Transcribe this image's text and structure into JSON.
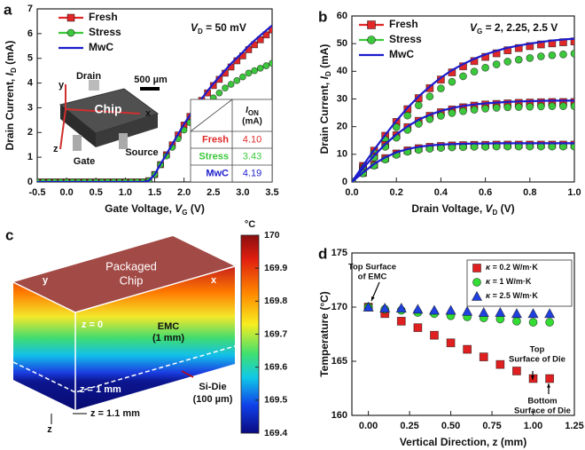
{
  "chart_data": [
    {
      "type": "line",
      "panel_label": "a",
      "x_label": {
        "pre": "Gate Voltage, ",
        "var": "V",
        "sub": "G",
        "post": " (V)"
      },
      "y_label": {
        "pre": "Drain Current, ",
        "var": "I",
        "sub": "D",
        "post": " (mA)"
      },
      "xlim": [
        -0.5,
        3.5
      ],
      "ylim": [
        0,
        7
      ],
      "xticks": [
        -0.5,
        {
          "value": 0,
          "label": "0.0"
        },
        0.5,
        {
          "value": 1,
          "label": "1.0"
        },
        1.5,
        {
          "value": 2,
          "label": "2.0"
        },
        2.5,
        {
          "value": 3,
          "label": "3.0"
        },
        3.5
      ],
      "yticks": [
        0,
        1,
        2,
        3,
        4,
        5,
        6,
        7
      ],
      "legend": "upper left",
      "annotations": [
        {
          "var": "V",
          "sub": "D",
          "post": " = 50 mV"
        }
      ],
      "x": [
        -0.5,
        -0.4,
        -0.3,
        -0.2,
        -0.1,
        0,
        0.1,
        0.2,
        0.3,
        0.4,
        0.5,
        0.6,
        0.7,
        0.8,
        0.9,
        1.0,
        1.1,
        1.2,
        1.3,
        1.4,
        1.5,
        1.6,
        1.7,
        1.8,
        1.9,
        2.0,
        2.1,
        2.2,
        2.3,
        2.4,
        2.5,
        2.6,
        2.7,
        2.8,
        2.9,
        3.0,
        3.1,
        3.2,
        3.3,
        3.4,
        3.5
      ],
      "series": [
        {
          "name": "Fresh",
          "color": "#e02828",
          "marker": "square",
          "values": [
            0,
            0,
            0,
            0,
            0,
            0,
            0,
            0,
            0,
            0,
            0,
            0,
            0,
            0,
            0,
            0,
            0,
            0,
            0,
            0.05,
            0.3,
            0.7,
            1.1,
            1.5,
            1.9,
            2.3,
            2.65,
            3.0,
            3.3,
            3.6,
            3.9,
            4.15,
            4.4,
            4.65,
            4.9,
            5.1,
            5.35,
            5.55,
            5.75,
            5.95,
            6.15
          ]
        },
        {
          "name": "Stress",
          "color": "#3cc83c",
          "marker": "circle",
          "values": [
            0,
            0,
            0,
            0,
            0,
            0,
            0,
            0,
            0,
            0,
            0,
            0,
            0,
            0,
            0,
            0,
            0,
            0,
            0,
            0.05,
            0.3,
            0.7,
            1.05,
            1.4,
            1.75,
            2.1,
            2.4,
            2.7,
            2.95,
            3.2,
            3.4,
            3.6,
            3.8,
            3.95,
            4.1,
            4.25,
            4.4,
            4.5,
            4.6,
            4.7,
            4.8
          ]
        },
        {
          "name": "MwC",
          "color": "#1c1ccc",
          "line": true,
          "values": [
            0,
            0,
            0,
            0,
            0,
            0,
            0,
            0,
            0,
            0,
            0,
            0,
            0,
            0,
            0,
            0,
            0,
            0,
            0,
            0.05,
            0.3,
            0.72,
            1.12,
            1.53,
            1.94,
            2.34,
            2.7,
            3.05,
            3.37,
            3.68,
            3.98,
            4.25,
            4.52,
            4.78,
            5.02,
            5.25,
            5.5,
            5.72,
            5.93,
            6.13,
            6.33
          ]
        }
      ],
      "table": {
        "header": [
          {
            "var": "I",
            "sub": "ON"
          },
          "(mA)"
        ],
        "rows": [
          [
            "Fresh",
            "4.10"
          ],
          [
            "Stress",
            "3.43"
          ],
          [
            "MwC",
            "4.19"
          ]
        ]
      },
      "inset": {
        "scale_bar": "500 µm",
        "chip": "Chip",
        "drain": "Drain",
        "gate": "Gate",
        "source": "Source",
        "x": "x",
        "y": "y",
        "z": "z"
      }
    },
    {
      "type": "line",
      "panel_label": "b",
      "x_label": {
        "pre": "Drain Voltage, ",
        "var": "V",
        "sub": "D",
        "post": " (V)"
      },
      "y_label": {
        "pre": "Drain Current, ",
        "var": "I",
        "sub": "D",
        "post": " (mA)"
      },
      "xlim": [
        0,
        1
      ],
      "ylim": [
        0,
        60
      ],
      "xticks": [
        {
          "value": 0,
          "label": "0.0"
        },
        0.2,
        0.4,
        0.6,
        0.8,
        {
          "value": 1,
          "label": "1.0"
        }
      ],
      "yticks": [
        0,
        10,
        20,
        30,
        40,
        50,
        60
      ],
      "legend": "upper left",
      "annotations": [
        {
          "var": "V",
          "sub": "G",
          "post": " = 2, 2.25, 2.5 V"
        }
      ],
      "x": [
        0,
        0.05,
        0.1,
        0.15,
        0.2,
        0.25,
        0.3,
        0.35,
        0.4,
        0.45,
        0.5,
        0.55,
        0.6,
        0.65,
        0.7,
        0.75,
        0.8,
        0.85,
        0.9,
        0.95,
        1.0
      ],
      "series": [
        {
          "name": "Fresh",
          "color": "#e02828",
          "marker": "square",
          "values": [
            0,
            5.8,
            11.3,
            16.7,
            21.7,
            26.3,
            30.3,
            33.9,
            37.0,
            39.6,
            41.8,
            43.7,
            45.2,
            46.5,
            47.6,
            48.4,
            49.1,
            49.7,
            50.1,
            50.5,
            50.8
          ]
        },
        {
          "name": "Stress",
          "color": "#3cc83c",
          "marker": "circle",
          "values": [
            0,
            5.3,
            10.4,
            15.2,
            19.8,
            24.0,
            27.7,
            30.9,
            33.8,
            36.2,
            38.2,
            39.9,
            41.3,
            42.5,
            43.5,
            44.2,
            44.8,
            45.4,
            45.8,
            46.1,
            46.4
          ]
        },
        {
          "name": "MwC",
          "color": "#1c1ccc",
          "line": true,
          "values": [
            0,
            5.9,
            11.6,
            17.0,
            22.1,
            26.8,
            30.9,
            34.5,
            37.7,
            40.4,
            42.6,
            44.5,
            46.1,
            47.4,
            48.5,
            49.3,
            50.0,
            50.6,
            51.1,
            51.5,
            51.8
          ]
        },
        {
          "color": "#e02828",
          "marker": "square",
          "values": [
            0,
            4.8,
            9.3,
            13.4,
            16.9,
            19.8,
            22.1,
            23.9,
            25.2,
            26.2,
            27.0,
            27.6,
            28.0,
            28.2,
            28.4,
            28.6,
            28.7,
            28.8,
            28.9,
            28.9,
            28.9
          ]
        },
        {
          "color": "#3cc83c",
          "marker": "circle",
          "values": [
            0,
            4.5,
            8.8,
            12.7,
            16.0,
            18.8,
            21.0,
            22.7,
            23.9,
            24.9,
            25.6,
            26.1,
            26.5,
            26.8,
            27.0,
            27.1,
            27.2,
            27.3,
            27.4,
            27.4,
            27.4
          ]
        },
        {
          "color": "#1c1ccc",
          "line": true,
          "values": [
            0,
            4.9,
            9.5,
            13.6,
            17.2,
            20.1,
            22.5,
            24.3,
            25.7,
            26.7,
            27.5,
            28.0,
            28.4,
            28.7,
            28.9,
            29.1,
            29.2,
            29.3,
            29.4,
            29.4,
            29.4
          ]
        },
        {
          "color": "#e02828",
          "marker": "square",
          "values": [
            0,
            3.3,
            6.2,
            8.6,
            10.3,
            11.4,
            12.2,
            12.7,
            13.0,
            13.2,
            13.3,
            13.4,
            13.4,
            13.5,
            13.5,
            13.5,
            13.5,
            13.5,
            13.5,
            13.5,
            13.5
          ]
        },
        {
          "color": "#3cc83c",
          "marker": "circle",
          "values": [
            0,
            3.1,
            5.9,
            8.1,
            9.8,
            10.9,
            11.6,
            12.0,
            12.3,
            12.5,
            12.6,
            12.7,
            12.7,
            12.8,
            12.8,
            12.8,
            12.8,
            12.8,
            12.8,
            12.8,
            12.8
          ]
        },
        {
          "color": "#1c1ccc",
          "line": true,
          "values": [
            0,
            3.4,
            6.5,
            8.9,
            10.7,
            11.9,
            12.7,
            13.2,
            13.5,
            13.7,
            13.8,
            13.9,
            13.9,
            14.0,
            14.0,
            14.0,
            14.0,
            14.0,
            14.0,
            14.0,
            14.0
          ]
        }
      ]
    },
    {
      "type": "scatter",
      "panel_label": "d",
      "x_label": "Vertical Direction, z (mm)",
      "y_label": "Temperature (°C)",
      "xlim": [
        -0.1,
        1.25
      ],
      "ylim": [
        160,
        175
      ],
      "xticks": [
        {
          "value": 0,
          "label": "0.00"
        },
        0.25,
        {
          "value": 0.5,
          "label": "0.50"
        },
        0.75,
        {
          "value": 1,
          "label": "1.00"
        },
        1.25
      ],
      "yticks": [
        160,
        165,
        170,
        175
      ],
      "legend": "upper right",
      "annotations": [
        [
          "Top Surface",
          "of EMC"
        ],
        [
          "Top",
          "Surface of Die"
        ],
        [
          "Bottom",
          "Surface of Die"
        ]
      ],
      "x": [
        0,
        0.1,
        0.2,
        0.3,
        0.4,
        0.5,
        0.6,
        0.7,
        0.8,
        0.9,
        1.0,
        1.1
      ],
      "series": [
        {
          "name": {
            "var": "κ",
            "post": " = 0.2 W/m·K"
          },
          "color": "#e02020",
          "marker": "square",
          "values": [
            170,
            169.4,
            168.7,
            168.1,
            167.4,
            166.7,
            166.1,
            165.4,
            164.7,
            164.1,
            163.4,
            163.4
          ]
        },
        {
          "name": {
            "var": "κ",
            "post": " = 1 W/m·K"
          },
          "color": "#33dd33",
          "marker": "circle",
          "values": [
            170,
            169.8,
            169.7,
            169.5,
            169.4,
            169.2,
            169.1,
            169.0,
            168.9,
            168.7,
            168.6,
            168.6
          ]
        },
        {
          "name": {
            "var": "κ",
            "post": " = 2.5 W/m·K"
          },
          "color": "#2040e0",
          "marker": "triangle",
          "values": [
            170,
            169.9,
            169.9,
            169.8,
            169.7,
            169.7,
            169.6,
            169.5,
            169.5,
            169.4,
            169.4,
            169.4
          ]
        }
      ]
    }
  ],
  "panel_c": {
    "panel_label": "c",
    "unit": "°C",
    "clim": [
      169.4,
      170
    ],
    "ticks": [
      170,
      169.9,
      169.8,
      169.7,
      169.6,
      169.5,
      169.4
    ],
    "labels": {
      "top": [
        "Packaged",
        "Chip"
      ],
      "x": "x",
      "y": "y",
      "z0": "z = 0",
      "emc": [
        "EMC",
        "(1 mm)"
      ],
      "z1": "z = 1 mm",
      "die": [
        "Si-Die",
        "(100 µm)"
      ],
      "z": "z",
      "z11": "z = 1.1 mm"
    }
  }
}
